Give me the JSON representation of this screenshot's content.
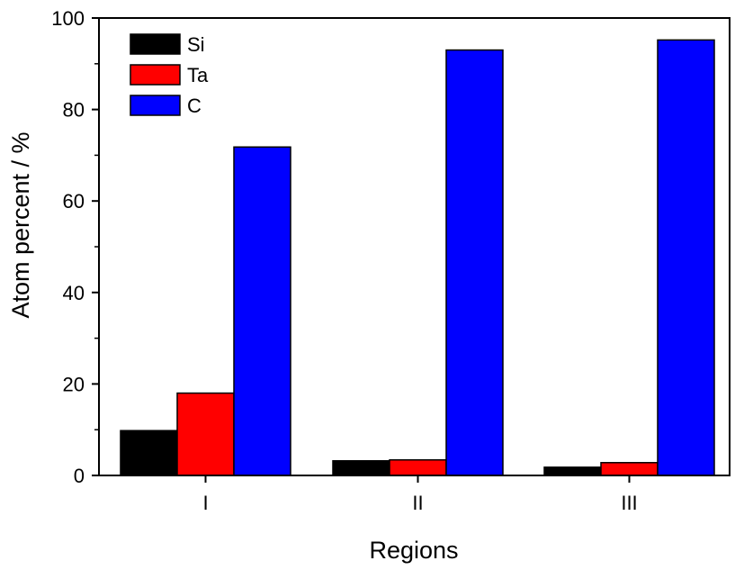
{
  "chart_data": {
    "type": "bar",
    "categories": [
      "I",
      "II",
      "III"
    ],
    "series": [
      {
        "name": "Si",
        "color": "#000000",
        "values": [
          9.8,
          3.2,
          1.8
        ]
      },
      {
        "name": "Ta",
        "color": "#ff0000",
        "values": [
          18,
          3.4,
          2.8
        ]
      },
      {
        "name": "C",
        "color": "#0000ff",
        "values": [
          71.8,
          93,
          95.2
        ]
      }
    ],
    "title": "",
    "xlabel": "Regions",
    "ylabel": "Atom percent / %",
    "ylim": [
      0,
      100
    ],
    "yticks": [
      0,
      20,
      40,
      60,
      80,
      100
    ],
    "grid": false,
    "legend_position": "top-left"
  }
}
